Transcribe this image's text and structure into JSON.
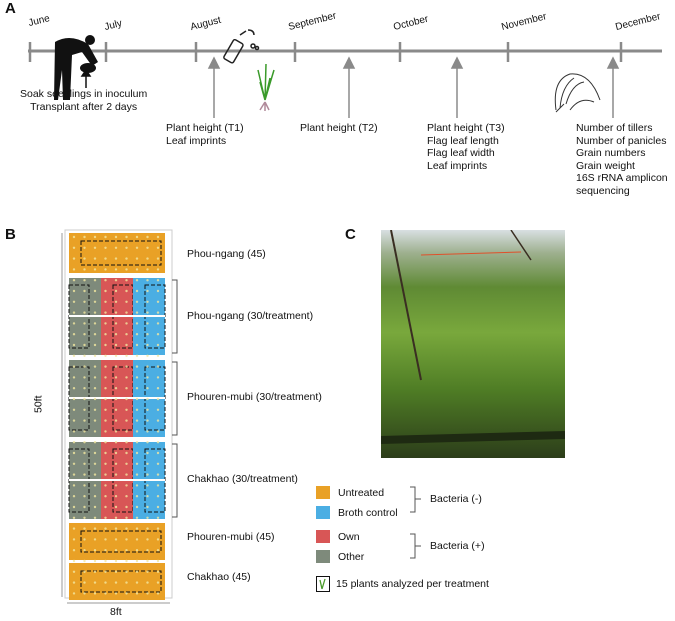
{
  "panels": {
    "a": "A",
    "b": "B",
    "c": "C"
  },
  "timeline": {
    "months": [
      "June",
      "July",
      "August",
      "September",
      "October",
      "November",
      "December"
    ],
    "inoculation": [
      "Soak seedlings in inoculum",
      "Transplant after 2 days"
    ],
    "measurements": [
      [
        "Plant height (T1)",
        "Leaf imprints"
      ],
      [
        "Plant height (T2)"
      ],
      [
        "Plant height (T3)",
        "Flag leaf length",
        "Flag leaf width",
        "Leaf imprints"
      ],
      [
        "Number of tillers",
        "Number of panicles",
        "Grain numbers",
        "Grain weight",
        "16S rRNA amplicon",
        "sequencing"
      ]
    ]
  },
  "field": {
    "rows": [
      "Phou-ngang (45)",
      "Phou-ngang (30/treatment)",
      "Phouren-mubi (30/treatment)",
      "Chakhao (30/treatment)",
      "Phouren-mubi (45)",
      "Chakhao (45)"
    ],
    "length": "50ft",
    "width": "8ft"
  },
  "legend": {
    "items": [
      {
        "label": "Untreated",
        "color": "#E9A126"
      },
      {
        "label": "Broth control",
        "color": "#4BAEE3"
      },
      {
        "label": "Own",
        "color": "#D85656"
      },
      {
        "label": "Other",
        "color": "#7E8A7B"
      }
    ],
    "groups": [
      "Bacteria (-)",
      "Bacteria (+)"
    ],
    "analyzed": "15 plants analyzed per treatment"
  }
}
